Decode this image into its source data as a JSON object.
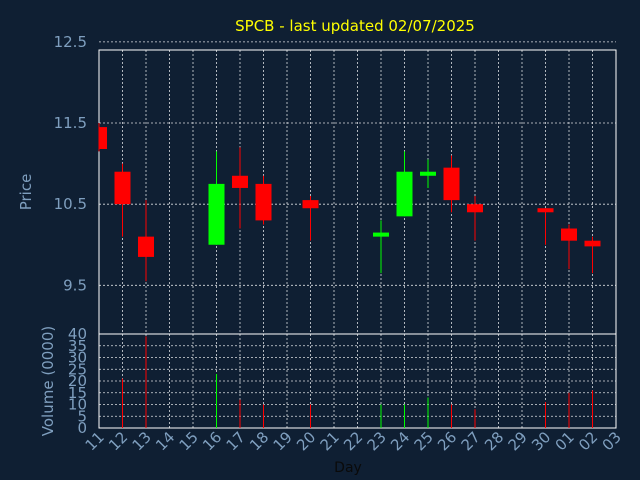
{
  "chart_data": {
    "type": "candlestick",
    "title": "SPCB - last updated 02/07/2025",
    "title_color": "#ffff00",
    "background": "#0f1f33",
    "axis_label_color": "#7f9fbf",
    "up_color": "#00ff00",
    "down_color": "#ff0000",
    "grid": true,
    "price_panel": {
      "ylabel": "Price",
      "ylim": [
        8.9,
        12.4
      ],
      "yticks": [
        "9.5",
        "10.5",
        "11.5",
        "12.5"
      ],
      "ytick_values": [
        9.5,
        10.5,
        11.5,
        12.5
      ]
    },
    "volume_panel": {
      "ylabel": "Volume (0000)",
      "ylim": [
        0,
        40
      ],
      "yticks": [
        "0",
        "5",
        "10",
        "15",
        "20",
        "25",
        "30",
        "35",
        "40"
      ],
      "ytick_values": [
        0,
        5,
        10,
        15,
        20,
        25,
        30,
        35,
        40
      ]
    },
    "xlabel": "Day",
    "xticks": [
      "11",
      "12",
      "13",
      "14",
      "15",
      "16",
      "17",
      "18",
      "19",
      "20",
      "21",
      "22",
      "23",
      "24",
      "25",
      "26",
      "27",
      "28",
      "29",
      "30",
      "01",
      "02",
      "03"
    ],
    "candles": [
      {
        "i": 0,
        "open": 11.45,
        "high": 11.5,
        "low": 11.15,
        "close": 11.18
      },
      {
        "i": 1,
        "open": 10.9,
        "high": 11.0,
        "low": 10.1,
        "close": 10.5
      },
      {
        "i": 2,
        "open": 10.1,
        "high": 10.55,
        "low": 9.55,
        "close": 9.85
      },
      {
        "i": 5,
        "open": 10.0,
        "high": 11.15,
        "low": 10.0,
        "close": 10.75
      },
      {
        "i": 6,
        "open": 10.85,
        "high": 11.2,
        "low": 10.2,
        "close": 10.7
      },
      {
        "i": 7,
        "open": 10.75,
        "high": 10.85,
        "low": 10.25,
        "close": 10.3
      },
      {
        "i": 9,
        "open": 10.55,
        "high": 10.6,
        "low": 10.05,
        "close": 10.45
      },
      {
        "i": 12,
        "open": 10.1,
        "high": 10.3,
        "low": 9.65,
        "close": 10.15
      },
      {
        "i": 13,
        "open": 10.35,
        "high": 11.15,
        "low": 10.35,
        "close": 10.9
      },
      {
        "i": 14,
        "open": 10.85,
        "high": 11.05,
        "low": 10.7,
        "close": 10.9
      },
      {
        "i": 15,
        "open": 10.95,
        "high": 11.1,
        "low": 10.4,
        "close": 10.55
      },
      {
        "i": 16,
        "open": 10.5,
        "high": 10.6,
        "low": 10.05,
        "close": 10.4
      },
      {
        "i": 19,
        "open": 10.45,
        "high": 10.45,
        "low": 10.0,
        "close": 10.4
      },
      {
        "i": 20,
        "open": 10.2,
        "high": 10.25,
        "low": 9.7,
        "close": 10.05
      },
      {
        "i": 21,
        "open": 10.05,
        "high": 10.1,
        "low": 9.65,
        "close": 9.98
      }
    ],
    "volumes": [
      {
        "i": 1,
        "value": 21,
        "dir": "down"
      },
      {
        "i": 2,
        "value": 39,
        "dir": "down"
      },
      {
        "i": 5,
        "value": 23,
        "dir": "up"
      },
      {
        "i": 6,
        "value": 12,
        "dir": "down"
      },
      {
        "i": 7,
        "value": 10,
        "dir": "down"
      },
      {
        "i": 9,
        "value": 10,
        "dir": "down"
      },
      {
        "i": 12,
        "value": 10,
        "dir": "up"
      },
      {
        "i": 13,
        "value": 10,
        "dir": "up"
      },
      {
        "i": 14,
        "value": 13,
        "dir": "up"
      },
      {
        "i": 15,
        "value": 10,
        "dir": "down"
      },
      {
        "i": 16,
        "value": 8,
        "dir": "down"
      },
      {
        "i": 19,
        "value": 11,
        "dir": "down"
      },
      {
        "i": 20,
        "value": 15,
        "dir": "down"
      },
      {
        "i": 21,
        "value": 16,
        "dir": "down"
      }
    ]
  }
}
